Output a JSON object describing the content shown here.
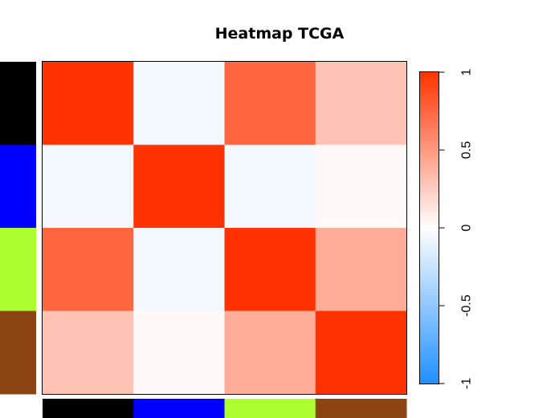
{
  "chart_data": {
    "type": "heatmap",
    "title": "Heatmap TCGA",
    "rows": 4,
    "cols": 4,
    "values": [
      [
        1.0,
        -0.05,
        0.75,
        0.3
      ],
      [
        -0.05,
        1.0,
        -0.05,
        0.03
      ],
      [
        0.75,
        -0.05,
        1.0,
        0.4
      ],
      [
        0.3,
        0.03,
        0.4,
        1.0
      ]
    ],
    "group_colors": [
      "#000000",
      "#0000ff",
      "#adff2f",
      "#8b4513"
    ],
    "colorbar": {
      "range": [
        -1,
        1
      ],
      "ticks": [
        -1,
        -0.5,
        0,
        0.5,
        1
      ],
      "tick_labels": [
        "-1",
        "-0.5",
        "0",
        "0.5",
        "1"
      ],
      "low_color": "#1e90ff",
      "mid_color": "#ffffff",
      "high_color": "#ff3300"
    }
  }
}
